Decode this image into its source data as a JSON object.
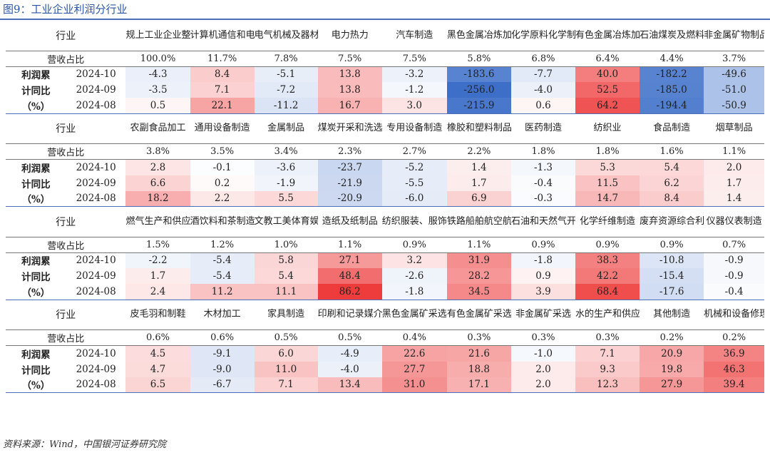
{
  "title": "图9：工业企业利润分行业",
  "source": "资料来源：Wind，中国银河证券研究院",
  "labels": {
    "industry": "行业",
    "share": "营收占比",
    "side": [
      "利润累",
      "计同比",
      "（%）"
    ],
    "dates": [
      "2024-10",
      "2024-09",
      "2024-08"
    ]
  },
  "colors": {
    "title": "#2a56a8",
    "negative": "#3d6fc8",
    "positive": "#ee3b3b",
    "rule": "#4a6fb8"
  },
  "blocks": [
    {
      "industries": [
        "规上工业企业整体",
        "计算机通信和电子设备",
        "电气机械及器材制造",
        "电力热力",
        "汽车制造",
        "黑色金属冶炼加工",
        "化学原料化学制品",
        "有色金属冶炼加工",
        "石油煤炭及燃料加工",
        "非金属矿物制品"
      ],
      "shares": [
        "100.0%",
        "11.7%",
        "7.8%",
        "7.5%",
        "7.5%",
        "5.8%",
        "6.8%",
        "6.4%",
        "4.4%",
        "3.7%"
      ],
      "rows": [
        [
          "-4.3",
          "8.4",
          "-5.1",
          "13.8",
          "-3.2",
          "-183.6",
          "-7.7",
          "40.0",
          "-182.2",
          "-49.6"
        ],
        [
          "-3.5",
          "7.1",
          "-7.2",
          "13.8",
          "-1.2",
          "-256.0",
          "-4.0",
          "52.5",
          "-185.0",
          "-51.0"
        ],
        [
          "0.5",
          "22.1",
          "-11.2",
          "16.7",
          "3.0",
          "-215.9",
          "0.6",
          "64.2",
          "-194.4",
          "-50.9"
        ]
      ]
    },
    {
      "industries": [
        "农副食品加工",
        "通用设备制造",
        "金属制品",
        "煤炭开采和洗选",
        "专用设备制造",
        "橡胶和塑料制品",
        "医药制造",
        "纺织业",
        "食品制造",
        "烟草制品"
      ],
      "shares": [
        "3.8%",
        "3.5%",
        "3.4%",
        "2.3%",
        "2.7%",
        "2.2%",
        "1.8%",
        "1.8%",
        "1.6%",
        "1.1%"
      ],
      "rows": [
        [
          "2.8",
          "-0.1",
          "-3.6",
          "-23.7",
          "-5.2",
          "1.4",
          "-1.3",
          "5.3",
          "5.4",
          "2.0"
        ],
        [
          "6.6",
          "0.2",
          "-1.9",
          "-21.9",
          "-5.5",
          "1.7",
          "-0.4",
          "11.5",
          "6.2",
          "1.7"
        ],
        [
          "18.2",
          "2.2",
          "5.5",
          "-20.9",
          "-6.0",
          "6.9",
          "-0.3",
          "14.7",
          "8.4",
          "1.4"
        ]
      ]
    },
    {
      "industries": [
        "燃气生产和供应",
        "酒饮料和茶制造",
        "文教工美体育娱乐用品",
        "造纸及纸制品",
        "纺织服装、服饰",
        "铁路船舶航空航天",
        "石油和天然气开采",
        "化学纤维制造",
        "废弃资源综合利用",
        "仪器仪表制造"
      ],
      "shares": [
        "1.5%",
        "1.2%",
        "1.0%",
        "1.1%",
        "0.9%",
        "1.1%",
        "0.9%",
        "0.9%",
        "0.9%",
        "0.7%"
      ],
      "rows": [
        [
          "-2.2",
          "-5.4",
          "5.8",
          "27.1",
          "3.2",
          "31.9",
          "-1.8",
          "38.3",
          "-10.8",
          "-0.9"
        ],
        [
          "1.7",
          "-5.4",
          "5.4",
          "48.4",
          "-2.6",
          "28.2",
          "0.9",
          "42.2",
          "-15.4",
          "-0.9"
        ],
        [
          "2.4",
          "11.2",
          "11.1",
          "86.2",
          "-1.8",
          "34.5",
          "3.9",
          "68.4",
          "-17.6",
          "-0.4"
        ]
      ]
    },
    {
      "industries": [
        "皮毛羽和制鞋",
        "木材加工",
        "家具制造",
        "印刷和记录媒介",
        "黑色金属矿采选",
        "有色金属矿采选",
        "非金属矿采选",
        "水的生产和供应",
        "其他制造",
        "机械和设备修理"
      ],
      "shares": [
        "0.6%",
        "0.6%",
        "0.5%",
        "0.5%",
        "0.4%",
        "0.3%",
        "0.3%",
        "0.3%",
        "0.2%",
        "0.2%"
      ],
      "rows": [
        [
          "4.5",
          "-9.1",
          "6.0",
          "-4.9",
          "22.6",
          "21.6",
          "-1.0",
          "7.1",
          "20.9",
          "36.9"
        ],
        [
          "4.7",
          "-9.0",
          "11.0",
          "-4.0",
          "27.7",
          "18.8",
          "2.0",
          "9.3",
          "19.8",
          "46.3"
        ],
        [
          "6.5",
          "-6.7",
          "7.1",
          "13.4",
          "31.0",
          "17.1",
          "2.0",
          "12.3",
          "27.9",
          "39.4"
        ]
      ]
    }
  ]
}
